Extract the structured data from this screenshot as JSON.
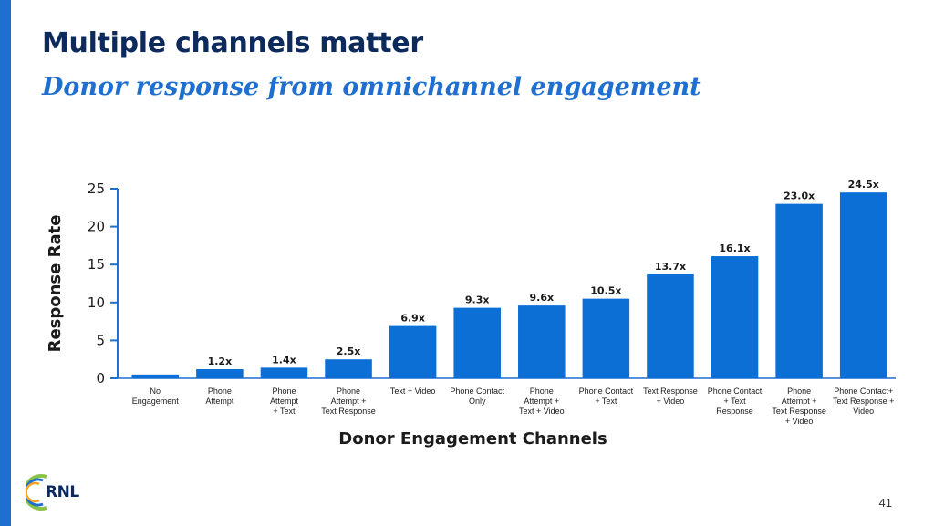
{
  "slide": {
    "title": "Multiple channels matter",
    "subtitle": "Donor response from omnichannel engagement",
    "page_number": "41",
    "logo_text": "RNL",
    "accent_color": "#1f6fd1",
    "title_color": "#0d2a5c"
  },
  "chart_data": {
    "type": "bar",
    "xlabel": "Donor Engagement Channels",
    "ylabel": "Response Rate",
    "ylim": [
      0,
      25
    ],
    "yticks": [
      0,
      5,
      10,
      15,
      20,
      25
    ],
    "grid": false,
    "bar_color": "#0b6fd6",
    "categories": [
      [
        "No",
        "Engagement"
      ],
      [
        "Phone",
        "Attempt"
      ],
      [
        "Phone",
        "Attempt",
        "+ Text"
      ],
      [
        "Phone",
        "Attempt +",
        "Text Response"
      ],
      [
        "Text + Video"
      ],
      [
        "Phone Contact",
        "Only"
      ],
      [
        "Phone",
        "Attempt +",
        "Text + Video"
      ],
      [
        "Phone Contact",
        "+ Text"
      ],
      [
        "Text Response",
        "+ Video"
      ],
      [
        "Phone Contact",
        "+ Text",
        "Response"
      ],
      [
        "Phone",
        "Attempt +",
        "Text Response",
        "+ Video"
      ],
      [
        "Phone Contact+",
        "Text Response +",
        "Video"
      ]
    ],
    "values": [
      0.5,
      1.2,
      1.4,
      2.5,
      6.9,
      9.3,
      9.6,
      10.5,
      13.7,
      16.1,
      23.0,
      24.5
    ],
    "value_labels": [
      "",
      "1.2x",
      "1.4x",
      "2.5x",
      "6.9x",
      "9.3x",
      "9.6x",
      "10.5x",
      "13.7x",
      "16.1x",
      "23.0x",
      "24.5x"
    ]
  }
}
